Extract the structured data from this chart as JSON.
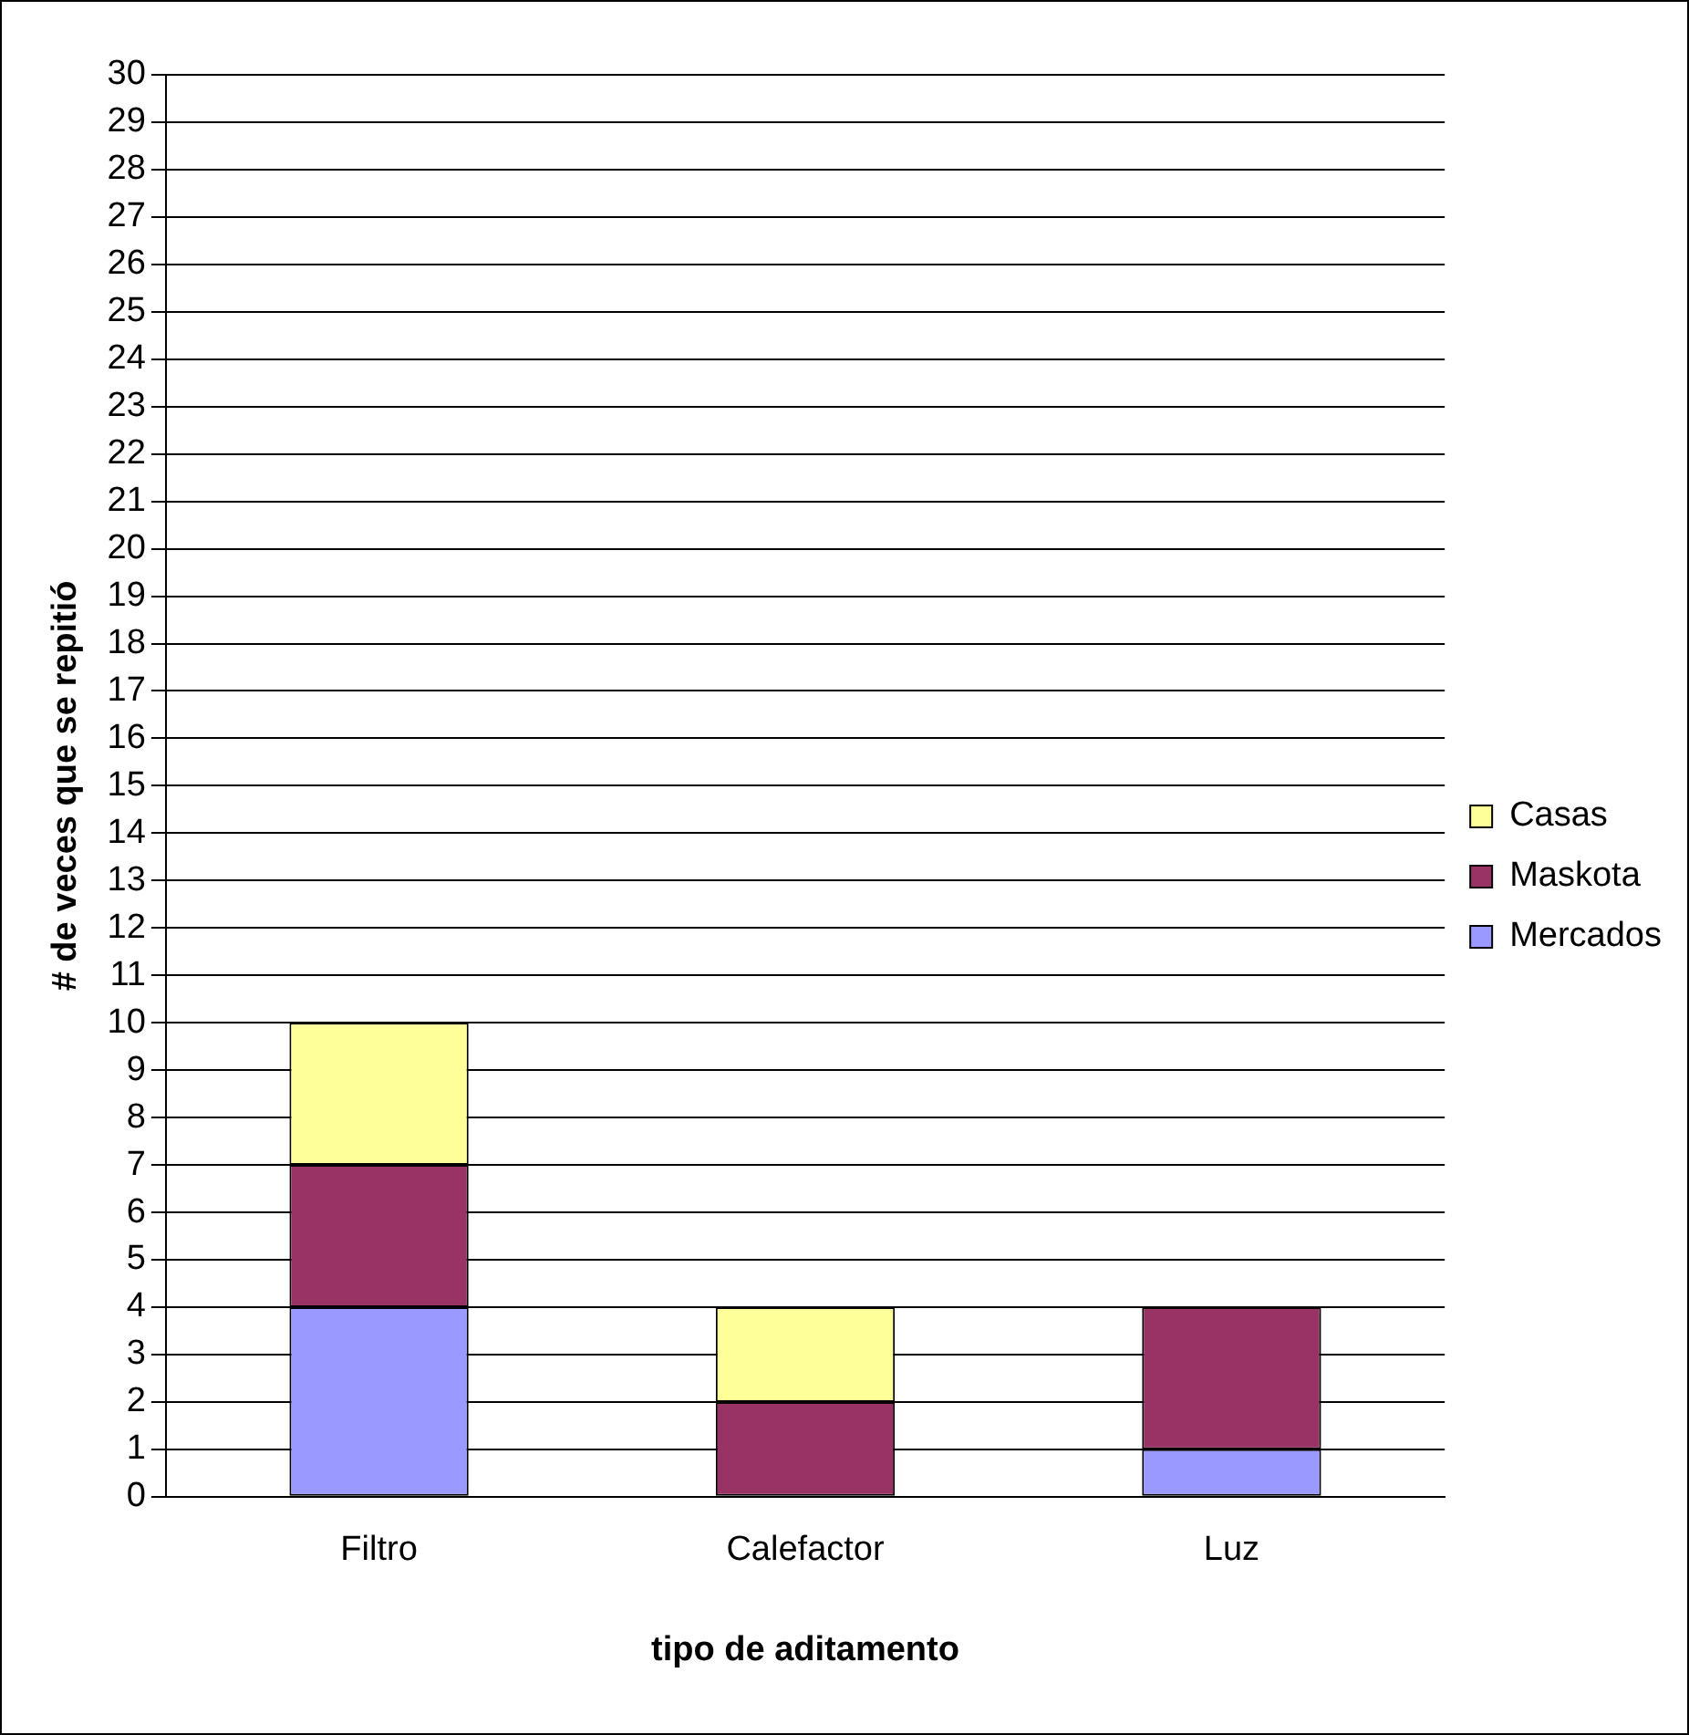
{
  "chart_data": {
    "type": "bar",
    "stacked": true,
    "xlabel": "tipo de aditamento",
    "ylabel": "# de veces que se repitió",
    "categories": [
      "Filtro",
      "Calefactor",
      "Luz"
    ],
    "series": [
      {
        "name": "Mercados",
        "color": "#9999ff",
        "values": [
          4,
          0,
          1
        ]
      },
      {
        "name": "Maskota",
        "color": "#993366",
        "values": [
          3,
          2,
          3
        ]
      },
      {
        "name": "Casas",
        "color": "#ffff99",
        "values": [
          3,
          2,
          0
        ]
      }
    ],
    "ylim": [
      0,
      30
    ],
    "yticks": [
      0,
      1,
      2,
      3,
      4,
      5,
      6,
      7,
      8,
      9,
      10,
      11,
      12,
      13,
      14,
      15,
      16,
      17,
      18,
      19,
      20,
      21,
      22,
      23,
      24,
      25,
      26,
      27,
      28,
      29,
      30
    ],
    "grid": "y",
    "legend": "right"
  }
}
